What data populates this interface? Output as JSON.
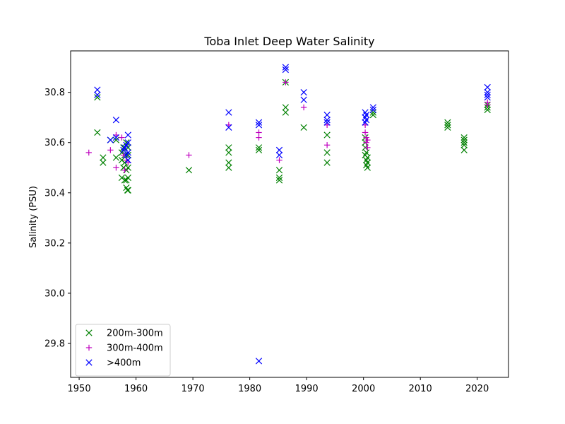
{
  "chart_data": {
    "type": "scatter",
    "title": "Toba Inlet Deep Water Salinity",
    "xlabel": "",
    "ylabel": "Salinity (PSU)",
    "xlim": [
      1948.5,
      2025.5
    ],
    "ylim": [
      29.665,
      30.965
    ],
    "x_ticks": [
      1950,
      1960,
      1970,
      1980,
      1990,
      2000,
      2010,
      2020
    ],
    "y_ticks": [
      29.8,
      30.0,
      30.2,
      30.4,
      30.6,
      30.8
    ],
    "grid": false,
    "legend_position": "lower-left",
    "series": [
      {
        "name": "200m-300m",
        "marker": "x",
        "color": "#008000",
        "points": [
          [
            1953.2,
            30.78
          ],
          [
            1953.2,
            30.64
          ],
          [
            1954.2,
            30.52
          ],
          [
            1954.2,
            30.54
          ],
          [
            1955.5,
            30.61
          ],
          [
            1956.5,
            30.61
          ],
          [
            1956.5,
            30.54
          ],
          [
            1957.5,
            30.56
          ],
          [
            1957.5,
            30.53
          ],
          [
            1957.5,
            30.46
          ],
          [
            1957.8,
            30.58
          ],
          [
            1957.8,
            30.5
          ],
          [
            1958.0,
            30.55
          ],
          [
            1958.0,
            30.45
          ],
          [
            1958.0,
            30.52
          ],
          [
            1958.3,
            30.6
          ],
          [
            1958.3,
            30.49
          ],
          [
            1958.3,
            30.42
          ],
          [
            1958.3,
            30.45
          ],
          [
            1958.5,
            30.41
          ],
          [
            1958.6,
            30.5
          ],
          [
            1958.6,
            30.55
          ],
          [
            1958.6,
            30.58
          ],
          [
            1958.6,
            30.46
          ],
          [
            1958.6,
            30.41
          ],
          [
            1969.3,
            30.49
          ],
          [
            1976.3,
            30.58
          ],
          [
            1976.3,
            30.56
          ],
          [
            1976.3,
            30.52
          ],
          [
            1976.3,
            30.5
          ],
          [
            1981.6,
            30.58
          ],
          [
            1981.6,
            30.57
          ],
          [
            1985.2,
            30.49
          ],
          [
            1985.2,
            30.46
          ],
          [
            1985.2,
            30.45
          ],
          [
            1986.3,
            30.74
          ],
          [
            1986.3,
            30.72
          ],
          [
            1986.3,
            30.84
          ],
          [
            1989.5,
            30.66
          ],
          [
            1993.6,
            30.63
          ],
          [
            1993.6,
            30.56
          ],
          [
            1993.6,
            30.52
          ],
          [
            2000.3,
            30.55
          ],
          [
            2000.3,
            30.58
          ],
          [
            2000.3,
            30.6
          ],
          [
            2000.3,
            30.62
          ],
          [
            2000.5,
            30.51
          ],
          [
            2000.5,
            30.53
          ],
          [
            2000.5,
            30.56
          ],
          [
            2000.7,
            30.5
          ],
          [
            2000.7,
            30.52
          ],
          [
            2000.7,
            30.54
          ],
          [
            2001.7,
            30.71
          ],
          [
            2001.7,
            30.72
          ],
          [
            2014.8,
            30.67
          ],
          [
            2014.8,
            30.68
          ],
          [
            2014.8,
            30.66
          ],
          [
            2017.7,
            30.57
          ],
          [
            2017.7,
            30.59
          ],
          [
            2017.7,
            30.61
          ],
          [
            2017.7,
            30.62
          ],
          [
            2017.7,
            30.6
          ],
          [
            2021.8,
            30.73
          ],
          [
            2021.8,
            30.74
          ],
          [
            2021.8,
            30.75
          ]
        ]
      },
      {
        "name": "300m-400m",
        "marker": "+",
        "color": "#bf00bf",
        "points": [
          [
            1951.7,
            30.56
          ],
          [
            1955.5,
            30.57
          ],
          [
            1956.5,
            30.5
          ],
          [
            1956.5,
            30.63
          ],
          [
            1957.5,
            30.62
          ],
          [
            1957.8,
            30.55
          ],
          [
            1958.0,
            30.49
          ],
          [
            1958.3,
            30.53
          ],
          [
            1958.6,
            30.52
          ],
          [
            1969.3,
            30.55
          ],
          [
            1976.3,
            30.67
          ],
          [
            1981.6,
            30.62
          ],
          [
            1981.6,
            30.64
          ],
          [
            1985.2,
            30.53
          ],
          [
            1986.3,
            30.84
          ],
          [
            1989.5,
            30.74
          ],
          [
            1993.6,
            30.67
          ],
          [
            1993.6,
            30.59
          ],
          [
            2000.3,
            30.67
          ],
          [
            2000.3,
            30.64
          ],
          [
            2000.5,
            30.62
          ],
          [
            2000.5,
            30.6
          ],
          [
            2000.7,
            30.58
          ],
          [
            2000.7,
            30.61
          ],
          [
            2021.8,
            30.76
          ],
          [
            2021.8,
            30.75
          ]
        ]
      },
      {
        "name": ">400m",
        "marker": "x",
        "color": "#0000ff",
        "points": [
          [
            1953.2,
            30.81
          ],
          [
            1953.2,
            30.79
          ],
          [
            1955.5,
            30.61
          ],
          [
            1956.5,
            30.69
          ],
          [
            1956.5,
            30.62
          ],
          [
            1957.8,
            30.57
          ],
          [
            1958.0,
            30.58
          ],
          [
            1958.3,
            30.59
          ],
          [
            1958.3,
            30.55
          ],
          [
            1958.6,
            30.63
          ],
          [
            1958.6,
            30.6
          ],
          [
            1958.6,
            30.56
          ],
          [
            1958.6,
            30.53
          ],
          [
            1976.3,
            30.72
          ],
          [
            1976.3,
            30.66
          ],
          [
            1981.6,
            30.68
          ],
          [
            1981.6,
            30.67
          ],
          [
            1981.6,
            29.73
          ],
          [
            1985.2,
            30.57
          ],
          [
            1985.2,
            30.55
          ],
          [
            1986.3,
            30.9
          ],
          [
            1986.3,
            30.89
          ],
          [
            1989.5,
            30.8
          ],
          [
            1989.5,
            30.77
          ],
          [
            1993.6,
            30.71
          ],
          [
            1993.6,
            30.69
          ],
          [
            1993.6,
            30.68
          ],
          [
            2000.3,
            30.72
          ],
          [
            2000.3,
            30.7
          ],
          [
            2000.3,
            30.68
          ],
          [
            2000.5,
            30.71
          ],
          [
            2000.5,
            30.69
          ],
          [
            2001.7,
            30.74
          ],
          [
            2001.7,
            30.73
          ],
          [
            2021.8,
            30.82
          ],
          [
            2021.8,
            30.8
          ],
          [
            2021.8,
            30.79
          ],
          [
            2021.8,
            30.78
          ]
        ]
      }
    ]
  }
}
